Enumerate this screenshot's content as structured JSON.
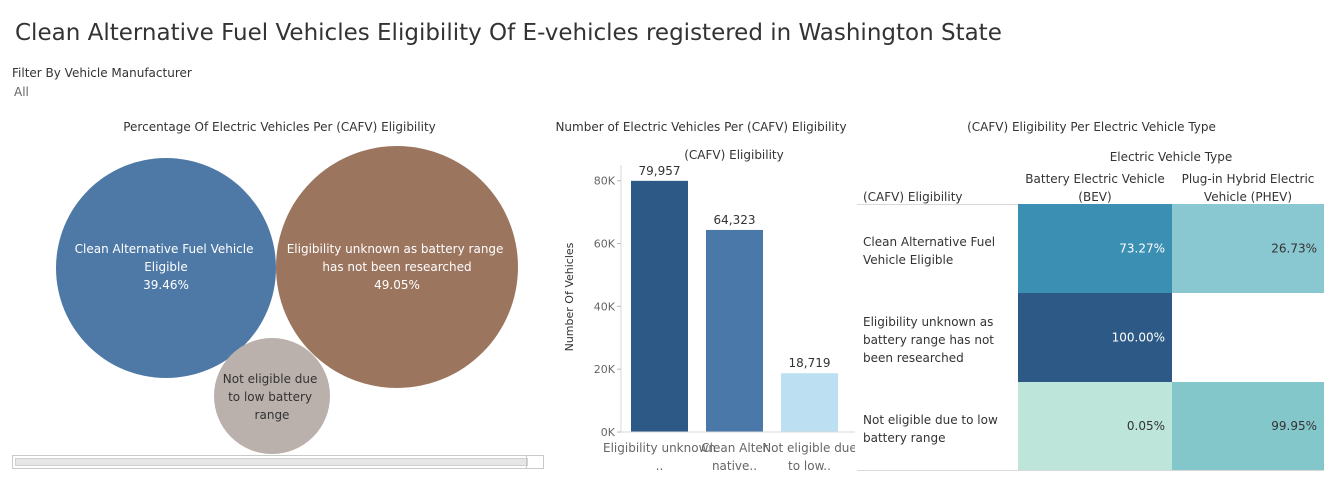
{
  "title": "Clean Alternative Fuel Vehicles Eligibility Of E-vehicles registered in Washington State",
  "filter": {
    "label": "Filter By Vehicle Manufacturer",
    "value": "All"
  },
  "bubble_chart": {
    "title": "Percentage Of Electric Vehicles Per (CAFV) Eligibility",
    "colors": [
      "#4e79a7",
      "#9c755f",
      "#bab0ac"
    ]
  },
  "bar_chart": {
    "title": "Number of Electric Vehicles Per (CAFV) Eligibility",
    "header": "(CAFV) Eligibility",
    "colors": [
      "#2c5986",
      "#4a78a8",
      "#bcdff1"
    ]
  },
  "heatmap": {
    "title": "(CAFV) Eligibility Per Electric Vehicle Type",
    "column_header": "Electric Vehicle Type",
    "row_header": "(CAFV) Eligibility"
  },
  "chart_data": [
    {
      "type": "bubble",
      "title": "Percentage Of Electric Vehicles Per (CAFV) Eligibility",
      "items": [
        {
          "label": "Clean Alternative Fuel Vehicle Eligible",
          "value_label": "39.46%",
          "value": 39.46
        },
        {
          "label": "Eligibility unknown as battery range has not been researched",
          "value_label": "49.05%",
          "value": 49.05
        },
        {
          "label": "Not eligible due to low battery range",
          "value_label": "",
          "value": 11.49
        }
      ]
    },
    {
      "type": "bar",
      "title": "Number of Electric Vehicles Per (CAFV) Eligibility",
      "header": "(CAFV) Eligibility",
      "categories": [
        "Eligibility unknown ..",
        "Clean Alter native..",
        "Not eligible due to low.."
      ],
      "values": [
        79957,
        64323,
        18719
      ],
      "value_labels": [
        "79,957",
        "64,323",
        "18,719"
      ],
      "ylabel": "Number Of Vehicles",
      "ylim": [
        0,
        85000
      ],
      "yticks": [
        0,
        20000,
        40000,
        60000,
        80000
      ],
      "ytick_labels": [
        "0K",
        "20K",
        "40K",
        "60K",
        "80K"
      ]
    },
    {
      "type": "heatmap",
      "title": "(CAFV) Eligibility Per Electric Vehicle Type",
      "columns": [
        "Battery Electric Vehicle (BEV)",
        "Plug-in Hybrid Electric Vehicle (PHEV)"
      ],
      "rows": [
        "Clean Alternative Fuel Vehicle Eligible",
        "Eligibility unknown as battery range has not been researched",
        "Not eligible due to low battery range"
      ],
      "values": [
        [
          73.27,
          26.73
        ],
        [
          100.0,
          null
        ],
        [
          0.05,
          99.95
        ]
      ],
      "value_labels": [
        [
          "73.27%",
          "26.73%"
        ],
        [
          "100.00%",
          ""
        ],
        [
          "0.05%",
          "99.95%"
        ]
      ],
      "cell_colors": [
        [
          "#3a8fb3",
          "#8ac8d1"
        ],
        [
          "#2c5986",
          null
        ],
        [
          "#bde5da",
          "#84c7cb"
        ]
      ]
    }
  ]
}
